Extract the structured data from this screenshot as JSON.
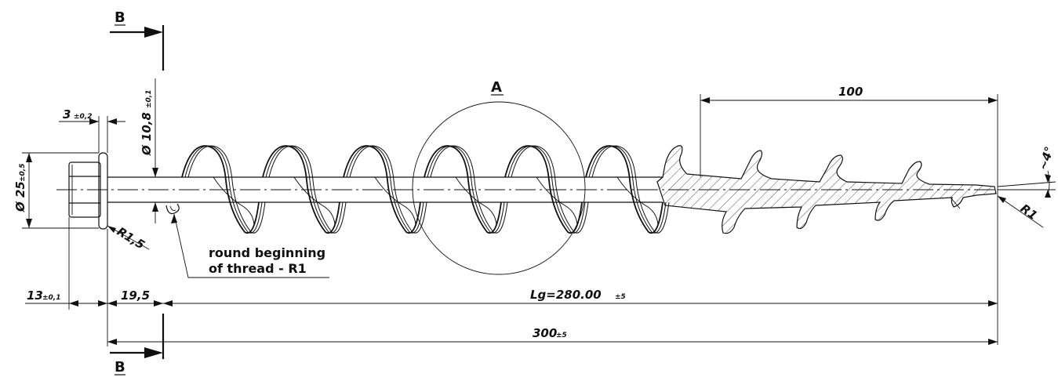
{
  "section_marks": {
    "top": "B",
    "bottom": "B"
  },
  "detail_mark": "A",
  "dimensions": {
    "flange_thickness": {
      "value": "3",
      "tol": "±0,2"
    },
    "shaft_diameter": {
      "value": "Ø 10,8",
      "tol": "±0,1"
    },
    "head_diameter": {
      "value": "Ø 25",
      "tol": "±0,5"
    },
    "flange_radius": {
      "value": "R1,5"
    },
    "tip_radius": {
      "value": "R1"
    },
    "taper_angle": {
      "value": "~4°"
    },
    "tip_length": {
      "value": "100"
    },
    "head_length": {
      "value": "13",
      "tol": "±0,1"
    },
    "shank_length": {
      "value": "19,5"
    },
    "thread_length": {
      "value": "Lg=280.00",
      "tol": "±5"
    },
    "total_length": {
      "value": "300",
      "tol": "±5"
    }
  },
  "note": {
    "line1": "round beginning",
    "line2": "of thread - R1"
  }
}
